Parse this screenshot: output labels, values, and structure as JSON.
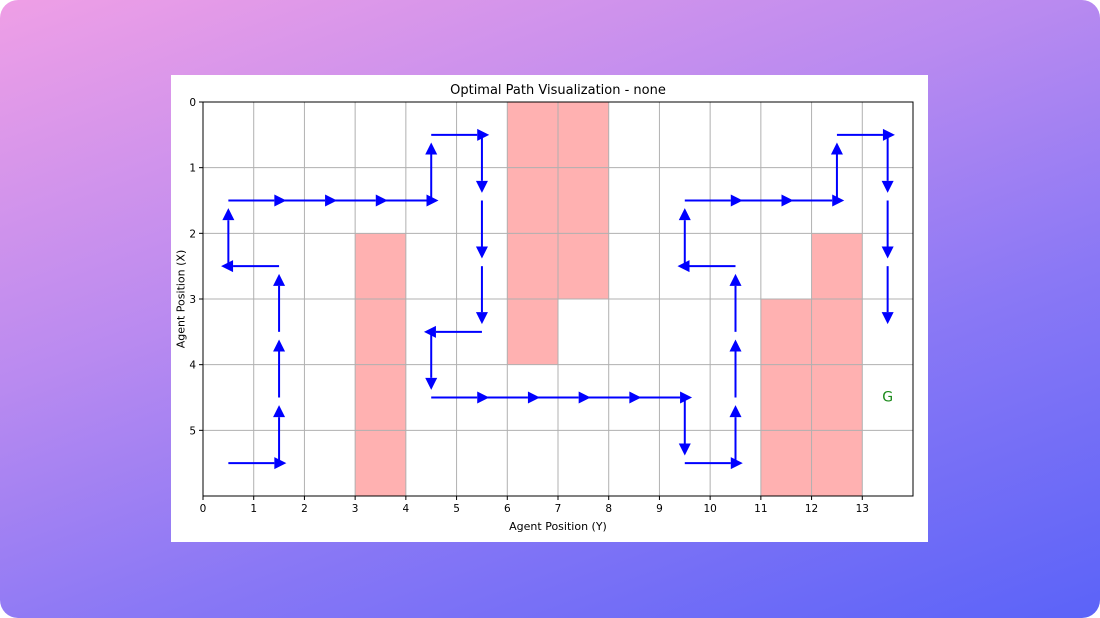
{
  "chart_data": {
    "type": "grid-path",
    "title": "Optimal Path Visualization - none",
    "xlabel": "Agent Position (Y)",
    "ylabel": "Agent Position (X)",
    "xlim": [
      0,
      14
    ],
    "ylim": [
      6,
      0
    ],
    "xticks": [
      0,
      1,
      2,
      3,
      4,
      5,
      6,
      7,
      8,
      9,
      10,
      11,
      12,
      13
    ],
    "yticks": [
      0,
      1,
      2,
      3,
      4,
      5
    ],
    "grid": true,
    "obstacle_color": "#ffb1b1",
    "arrow_color": "#0000ff",
    "goal_color": "#1a8a1a",
    "obstacles": [
      {
        "col": 3,
        "rows": [
          2,
          3,
          4,
          5
        ]
      },
      {
        "col": 6,
        "rows": [
          0,
          1,
          2,
          3
        ]
      },
      {
        "col": 7,
        "rows": [
          0,
          1,
          2
        ]
      },
      {
        "col": 11,
        "rows": [
          3,
          4,
          5
        ]
      },
      {
        "col": 12,
        "rows": [
          2,
          3,
          4,
          5
        ]
      }
    ],
    "goal": {
      "row": 4,
      "col": 13,
      "label": "G"
    },
    "path": [
      [
        5,
        0,
        "right"
      ],
      [
        5,
        1,
        "up"
      ],
      [
        4,
        1,
        "up"
      ],
      [
        3,
        1,
        "up"
      ],
      [
        2,
        1,
        "left"
      ],
      [
        2,
        0,
        "up"
      ],
      [
        1,
        0,
        "right"
      ],
      [
        1,
        1,
        "right"
      ],
      [
        1,
        2,
        "right"
      ],
      [
        1,
        3,
        "right"
      ],
      [
        1,
        4,
        "up"
      ],
      [
        0,
        4,
        "right"
      ],
      [
        0,
        5,
        "down"
      ],
      [
        1,
        5,
        "down"
      ],
      [
        2,
        5,
        "down"
      ],
      [
        3,
        5,
        "left"
      ],
      [
        3,
        4,
        "down"
      ],
      [
        4,
        4,
        "right"
      ],
      [
        4,
        5,
        "right"
      ],
      [
        4,
        6,
        "right"
      ],
      [
        4,
        7,
        "right"
      ],
      [
        4,
        8,
        "right"
      ],
      [
        4,
        9,
        "down"
      ],
      [
        5,
        9,
        "right"
      ],
      [
        5,
        10,
        "up"
      ],
      [
        4,
        10,
        "up"
      ],
      [
        3,
        10,
        "up"
      ],
      [
        2,
        10,
        "left"
      ],
      [
        2,
        9,
        "up"
      ],
      [
        1,
        9,
        "right"
      ],
      [
        1,
        10,
        "right"
      ],
      [
        1,
        11,
        "right"
      ],
      [
        1,
        12,
        "up"
      ],
      [
        0,
        12,
        "right"
      ],
      [
        0,
        13,
        "down"
      ],
      [
        1,
        13,
        "down"
      ],
      [
        2,
        13,
        "down"
      ]
    ]
  }
}
